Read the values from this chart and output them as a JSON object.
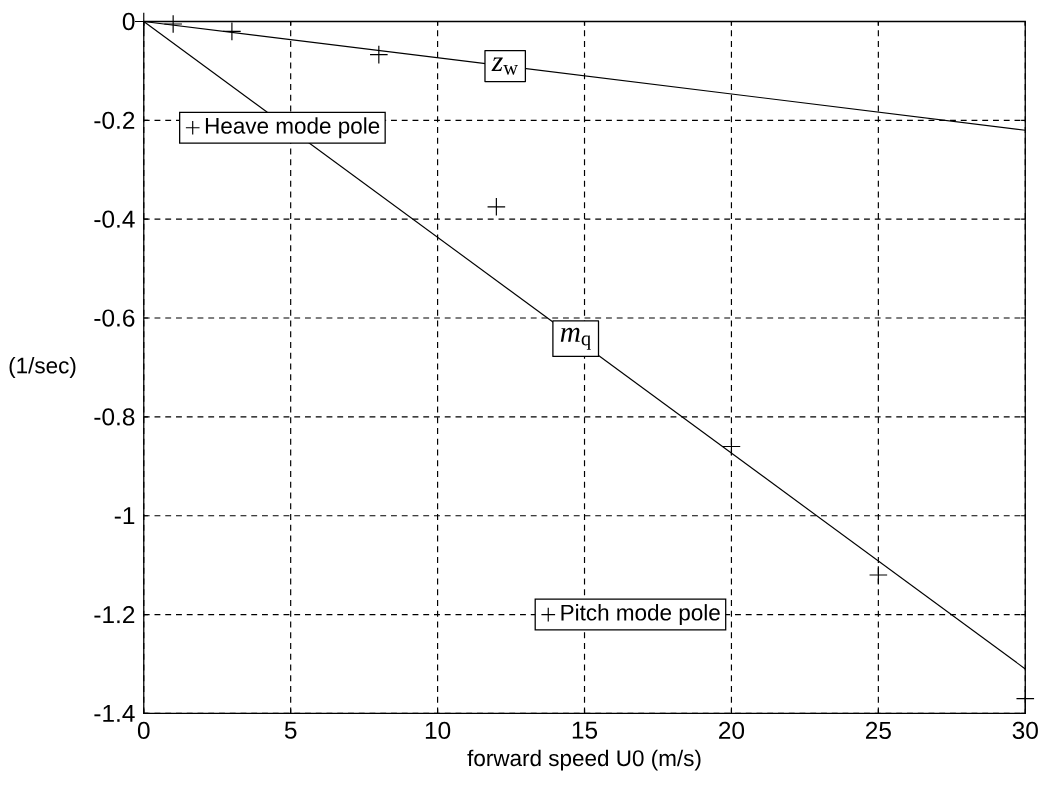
{
  "chart_data": {
    "type": "scatter",
    "xlabel": "forward speed U0 (m/s)",
    "ylabel": "(1/sec)",
    "xlim": [
      0,
      30
    ],
    "ylim": [
      -1.4,
      0
    ],
    "xticks": [
      0,
      5,
      10,
      15,
      20,
      25,
      30
    ],
    "yticks": [
      -1.4,
      -1.2,
      -1,
      -0.8,
      -0.6,
      -0.4,
      -0.2,
      0
    ],
    "grid": true,
    "legend": "left",
    "series": [
      {
        "name": "*z*$_{w}$",
        "type": "line",
        "color": "#000000",
        "marker": "none",
        "x": [
          0,
          30
        ],
        "values": [
          0,
          -0.22
        ]
      },
      {
        "name": "*m*$_{q}$",
        "type": "line",
        "color": "#000000",
        "marker": "none",
        "x": [
          0,
          30
        ],
        "values": [
          0,
          -1.31
        ]
      },
      {
        "name": "Heave mode pole",
        "color": "#000000",
        "marker": "cross",
        "x": [
          0,
          1,
          3,
          8
        ],
        "values": [
          0,
          -0.005,
          -0.02,
          -0.067
        ]
      },
      {
        "name": "Pitch mode pole",
        "color": "#000000",
        "marker": "cross",
        "x": [
          12,
          20,
          25,
          30
        ],
        "values": [
          -0.375,
          -0.86,
          -1.12,
          -1.37
        ]
      }
    ]
  }
}
